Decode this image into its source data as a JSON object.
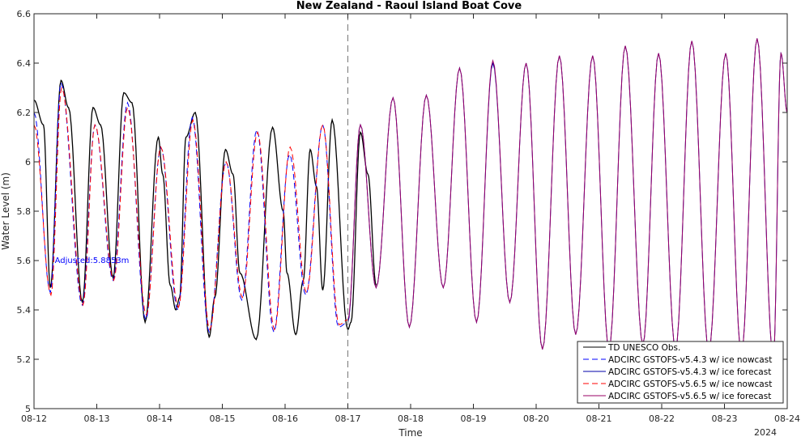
{
  "chart_data": {
    "type": "line",
    "title": "New Zealand - Raoul Island Boat Cove",
    "xlabel": "Time",
    "ylabel": "Water Level (m)",
    "year_label": "2024",
    "xlim": [
      0,
      12
    ],
    "ylim": [
      5,
      6.6
    ],
    "x_ticks": [
      0,
      1,
      2,
      3,
      4,
      5,
      6,
      7,
      8,
      9,
      10,
      11,
      12
    ],
    "x_tick_labels": [
      "08-12",
      "08-13",
      "08-14",
      "08-15",
      "08-16",
      "08-17",
      "08-18",
      "08-19",
      "08-20",
      "08-21",
      "08-22",
      "08-23",
      "08-24"
    ],
    "y_ticks": [
      5,
      5.2,
      5.4,
      5.6,
      5.8,
      6,
      6.2,
      6.4,
      6.6
    ],
    "y_tick_labels": [
      "5",
      "5.2",
      "5.4",
      "5.6",
      "5.8",
      "6",
      "6.2",
      "6.4",
      "6.6"
    ],
    "nowcast_forecast_divider_x": 5,
    "annotation": {
      "text": "Adjusted:5.8853m",
      "x": 0.33,
      "y": 5.6,
      "color": "#0000ff"
    },
    "grid": false,
    "legend_position": "bottom-right",
    "series": [
      {
        "name": "TD UNESCO Obs.",
        "color": "#000000",
        "dash": "solid",
        "role": "obs",
        "x": [
          0,
          0.15,
          0.26,
          0.43,
          0.55,
          0.77,
          0.94,
          1.06,
          1.26,
          1.43,
          1.56,
          1.77,
          1.98,
          2.05,
          2.17,
          2.26,
          2.32,
          2.42,
          2.57,
          2.79,
          2.88,
          3.05,
          3.17,
          3.28,
          3.54,
          3.8,
          3.97,
          4.03,
          4.17,
          4.29,
          4.4,
          4.5,
          4.6,
          4.75,
          5,
          5.05,
          5.2,
          5.32,
          5.45
        ],
        "y": [
          6.25,
          6.15,
          5.49,
          6.33,
          6.22,
          5.43,
          6.22,
          6.15,
          5.53,
          6.28,
          6.24,
          5.35,
          6.1,
          5.95,
          5.5,
          5.4,
          5.45,
          6.1,
          6.2,
          5.29,
          5.45,
          6.05,
          5.95,
          5.55,
          5.28,
          6.14,
          5.8,
          5.55,
          5.3,
          5.52,
          6.05,
          5.9,
          5.48,
          6.17,
          5.32,
          5.35,
          6.12,
          5.95,
          5.5
        ]
      },
      {
        "name": "ADCIRC GSTOFS-v5.4.3 w/ ice nowcast",
        "color": "#0000ff",
        "dash": "dashed",
        "role": "nowcast",
        "x": [
          0,
          0.26,
          0.43,
          0.77,
          0.97,
          1.26,
          1.49,
          1.78,
          2.02,
          2.29,
          2.52,
          2.79,
          3.06,
          3.31,
          3.55,
          3.82,
          4.07,
          4.33,
          4.6,
          4.85,
          5.0
        ],
        "y": [
          6.2,
          5.47,
          6.32,
          5.42,
          6.15,
          5.52,
          6.24,
          5.36,
          6.06,
          5.4,
          6.18,
          5.31,
          6.0,
          5.44,
          6.13,
          5.31,
          6.03,
          5.46,
          6.15,
          5.33,
          5.35
        ]
      },
      {
        "name": "ADCIRC GSTOFS-v5.4.3 w/ ice forecast",
        "color": "#0000aa",
        "dash": "solid",
        "role": "forecast",
        "x": [
          5.0,
          5.2,
          5.45,
          5.72,
          5.98,
          6.25,
          6.52,
          6.78,
          7.05,
          7.31,
          7.58,
          7.84,
          8.1,
          8.37,
          8.63,
          8.9,
          9.16,
          9.42,
          9.7,
          9.95,
          10.22,
          10.48,
          10.75,
          11.02,
          11.27,
          11.52,
          11.78,
          11.9,
          12.0
        ],
        "y": [
          5.35,
          6.15,
          5.49,
          6.26,
          5.33,
          6.27,
          5.49,
          6.38,
          5.35,
          6.4,
          5.43,
          6.4,
          5.24,
          6.43,
          5.3,
          6.43,
          5.24,
          6.47,
          5.26,
          6.44,
          5.24,
          6.49,
          5.23,
          6.44,
          5.22,
          6.5,
          5.2,
          6.44,
          6.2
        ]
      },
      {
        "name": "ADCIRC GSTOFS-v5.6.5 w/ ice nowcast",
        "color": "#ff0000",
        "dash": "dashed",
        "role": "nowcast",
        "x": [
          0,
          0.27,
          0.44,
          0.78,
          0.97,
          1.27,
          1.49,
          1.79,
          2.02,
          2.3,
          2.53,
          2.8,
          3.06,
          3.32,
          3.56,
          3.83,
          4.08,
          4.34,
          4.6,
          4.86,
          5.0
        ],
        "y": [
          6.15,
          5.46,
          6.3,
          5.42,
          6.15,
          5.52,
          6.22,
          5.38,
          6.06,
          5.41,
          6.17,
          5.32,
          6.0,
          5.45,
          6.12,
          5.32,
          6.06,
          5.47,
          6.15,
          5.34,
          5.36
        ]
      },
      {
        "name": "ADCIRC GSTOFS-v5.6.5 w/ ice forecast",
        "color": "#990066",
        "dash": "solid",
        "role": "forecast",
        "x": [
          5.0,
          5.2,
          5.45,
          5.72,
          5.98,
          6.25,
          6.52,
          6.78,
          7.05,
          7.31,
          7.58,
          7.84,
          8.1,
          8.37,
          8.63,
          8.9,
          9.16,
          9.42,
          9.7,
          9.95,
          10.22,
          10.48,
          10.75,
          11.02,
          11.27,
          11.52,
          11.78,
          11.9,
          12.0
        ],
        "y": [
          5.36,
          6.15,
          5.49,
          6.26,
          5.33,
          6.27,
          5.49,
          6.38,
          5.35,
          6.41,
          5.43,
          6.4,
          5.24,
          6.43,
          5.3,
          6.43,
          5.24,
          6.47,
          5.26,
          6.44,
          5.24,
          6.49,
          5.23,
          6.44,
          5.22,
          6.5,
          5.2,
          6.44,
          6.2
        ]
      }
    ]
  }
}
